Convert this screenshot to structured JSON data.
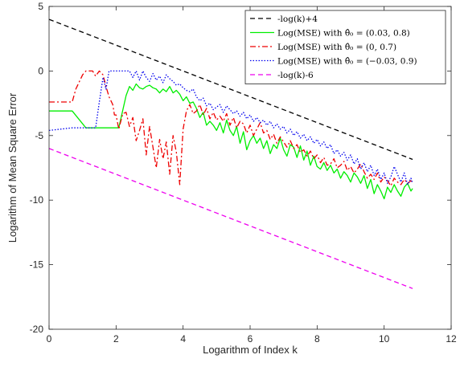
{
  "chart_data": {
    "type": "line",
    "xlabel": "Logarithm of Index k",
    "ylabel": "Logarithm of Mean Square Error",
    "xlim": [
      0,
      12
    ],
    "ylim": [
      -20,
      5
    ],
    "xticks": [
      0,
      2,
      4,
      6,
      8,
      10,
      12
    ],
    "yticks": [
      5,
      0,
      -5,
      -10,
      -15,
      -20
    ],
    "grid": false,
    "legend_position": "top-right",
    "series": [
      {
        "name": "-log(k)+4",
        "color": "#000000",
        "dash": "dashed",
        "x": [
          0,
          10.85
        ],
        "y": [
          4,
          -6.85
        ]
      },
      {
        "name": "Log(MSE) with θ̂₀ = (0.03, 0.8)",
        "color": "#00ee00",
        "dash": "solid",
        "x": [
          0,
          0.69,
          1.1,
          1.39,
          1.61,
          1.79,
          1.95,
          2.08,
          2.3,
          2.4,
          2.5,
          2.6,
          2.7,
          2.8,
          2.9,
          3.0,
          3.1,
          3.2,
          3.3,
          3.4,
          3.5,
          3.6,
          3.7,
          3.8,
          3.9,
          4.0,
          4.1,
          4.2,
          4.3,
          4.4,
          4.5,
          4.6,
          4.7,
          4.8,
          4.9,
          5.0,
          5.1,
          5.2,
          5.3,
          5.4,
          5.5,
          5.6,
          5.7,
          5.8,
          5.9,
          6.0,
          6.1,
          6.2,
          6.3,
          6.4,
          6.5,
          6.6,
          6.7,
          6.8,
          6.9,
          7.0,
          7.1,
          7.2,
          7.3,
          7.4,
          7.5,
          7.6,
          7.7,
          7.8,
          7.9,
          8.0,
          8.1,
          8.2,
          8.3,
          8.4,
          8.5,
          8.6,
          8.7,
          8.8,
          8.9,
          9.0,
          9.1,
          9.2,
          9.3,
          9.4,
          9.5,
          9.6,
          9.7,
          9.8,
          9.9,
          10.0,
          10.1,
          10.2,
          10.3,
          10.4,
          10.5,
          10.6,
          10.7,
          10.8,
          10.85
        ],
        "y": [
          -3.1,
          -3.1,
          -4.4,
          -4.4,
          -4.4,
          -4.4,
          -4.4,
          -4.4,
          -1.9,
          -1.2,
          -1.5,
          -1.0,
          -1.3,
          -1.4,
          -1.2,
          -1.1,
          -1.3,
          -1.4,
          -1.7,
          -1.4,
          -1.6,
          -1.2,
          -1.7,
          -1.5,
          -1.8,
          -2.3,
          -2.0,
          -2.5,
          -2.4,
          -2.9,
          -3.6,
          -3.2,
          -4.2,
          -3.9,
          -4.2,
          -4.6,
          -4.0,
          -4.8,
          -3.8,
          -4.6,
          -5.0,
          -4.3,
          -5.6,
          -4.7,
          -6.1,
          -5.4,
          -5.0,
          -5.6,
          -5.2,
          -6.0,
          -5.4,
          -6.4,
          -5.7,
          -6.0,
          -5.2,
          -6.1,
          -6.6,
          -5.7,
          -5.9,
          -6.7,
          -5.8,
          -6.9,
          -6.2,
          -7.3,
          -6.6,
          -7.4,
          -7.6,
          -7.1,
          -7.7,
          -7.3,
          -7.9,
          -7.6,
          -8.3,
          -7.8,
          -8.1,
          -8.6,
          -7.9,
          -8.2,
          -8.7,
          -8.1,
          -9.1,
          -8.4,
          -9.5,
          -8.8,
          -9.3,
          -9.9,
          -9.0,
          -9.4,
          -8.8,
          -9.3,
          -9.7,
          -9.0,
          -8.7,
          -9.3,
          -9.1
        ]
      },
      {
        "name": "Log(MSE) with θ̂₀ = (0, 0.7)",
        "color": "#ee0000",
        "dash": "dashdot",
        "x": [
          0,
          0.69,
          0.8,
          1.0,
          1.1,
          1.3,
          1.39,
          1.5,
          1.61,
          1.7,
          1.79,
          1.9,
          1.95,
          2.0,
          2.08,
          2.2,
          2.3,
          2.4,
          2.5,
          2.6,
          2.7,
          2.8,
          2.9,
          3.0,
          3.1,
          3.2,
          3.3,
          3.4,
          3.5,
          3.6,
          3.7,
          3.8,
          3.9,
          4.0,
          4.1,
          4.2,
          4.3,
          4.4,
          4.5,
          4.6,
          4.7,
          4.8,
          4.9,
          5.0,
          5.1,
          5.2,
          5.3,
          5.4,
          5.5,
          5.6,
          5.7,
          5.8,
          5.9,
          6.0,
          6.1,
          6.2,
          6.3,
          6.4,
          6.5,
          6.6,
          6.7,
          6.8,
          6.9,
          7.0,
          7.1,
          7.2,
          7.3,
          7.4,
          7.5,
          7.6,
          7.7,
          7.8,
          7.9,
          8.0,
          8.1,
          8.2,
          8.3,
          8.4,
          8.5,
          8.6,
          8.7,
          8.8,
          8.9,
          9.0,
          9.1,
          9.2,
          9.3,
          9.4,
          9.5,
          9.6,
          9.7,
          9.8,
          9.9,
          10.0,
          10.1,
          10.2,
          10.3,
          10.4,
          10.5,
          10.6,
          10.7,
          10.8,
          10.85
        ],
        "y": [
          -2.4,
          -2.4,
          -1.4,
          -0.3,
          0.0,
          0.0,
          -0.4,
          0.0,
          -0.3,
          -1.2,
          -2.0,
          -2.6,
          -3.4,
          -3.4,
          -4.5,
          -3.3,
          -3.2,
          -4.3,
          -3.6,
          -5.4,
          -4.6,
          -3.7,
          -6.5,
          -4.3,
          -5.9,
          -7.5,
          -5.3,
          -6.8,
          -5.5,
          -8.0,
          -5.0,
          -6.3,
          -8.8,
          -4.5,
          -3.1,
          -2.6,
          -3.3,
          -3.1,
          -2.6,
          -3.4,
          -2.9,
          -3.7,
          -3.2,
          -3.8,
          -3.5,
          -3.9,
          -3.3,
          -4.2,
          -3.6,
          -4.4,
          -3.9,
          -4.1,
          -4.8,
          -4.2,
          -5.0,
          -4.5,
          -4.0,
          -4.8,
          -4.6,
          -5.3,
          -4.9,
          -5.6,
          -5.1,
          -5.5,
          -5.9,
          -5.4,
          -6.0,
          -5.7,
          -6.3,
          -6.1,
          -6.6,
          -6.2,
          -6.8,
          -6.5,
          -7.1,
          -6.7,
          -7.3,
          -7.2,
          -6.8,
          -7.5,
          -7.3,
          -7.0,
          -7.7,
          -7.4,
          -7.9,
          -7.6,
          -7.2,
          -7.8,
          -8.3,
          -8.0,
          -8.4,
          -7.9,
          -8.6,
          -8.2,
          -8.5,
          -8.9,
          -8.3,
          -8.6,
          -8.8,
          -8.4,
          -8.7,
          -8.5,
          -8.6
        ]
      },
      {
        "name": "Log(MSE) with θ̂₀ = (−0.03, 0.9)",
        "color": "#0000ee",
        "dash": "dotted",
        "x": [
          0,
          0.69,
          1.1,
          1.39,
          1.5,
          1.61,
          1.7,
          1.79,
          1.9,
          1.95,
          2.0,
          2.08,
          2.2,
          2.3,
          2.4,
          2.5,
          2.6,
          2.7,
          2.8,
          2.9,
          3.0,
          3.1,
          3.2,
          3.3,
          3.4,
          3.5,
          3.6,
          3.7,
          3.8,
          3.9,
          4.0,
          4.1,
          4.2,
          4.3,
          4.4,
          4.5,
          4.6,
          4.7,
          4.8,
          4.9,
          5.0,
          5.1,
          5.2,
          5.3,
          5.4,
          5.5,
          5.6,
          5.7,
          5.8,
          5.9,
          6.0,
          6.1,
          6.2,
          6.3,
          6.4,
          6.5,
          6.6,
          6.7,
          6.8,
          6.9,
          7.0,
          7.1,
          7.2,
          7.3,
          7.4,
          7.5,
          7.6,
          7.7,
          7.8,
          7.9,
          8.0,
          8.1,
          8.2,
          8.3,
          8.4,
          8.5,
          8.6,
          8.7,
          8.8,
          8.9,
          9.0,
          9.1,
          9.2,
          9.3,
          9.4,
          9.5,
          9.6,
          9.7,
          9.8,
          9.9,
          10.0,
          10.1,
          10.2,
          10.3,
          10.4,
          10.5,
          10.6,
          10.7,
          10.8,
          10.85
        ],
        "y": [
          -4.6,
          -4.4,
          -4.4,
          -4.4,
          -2.4,
          -0.5,
          -1.4,
          0.0,
          0.0,
          0.0,
          0.0,
          0.0,
          0.0,
          0.0,
          0.0,
          -0.5,
          0.0,
          -0.7,
          0.0,
          -0.5,
          -0.8,
          -0.2,
          -0.7,
          -0.4,
          -0.9,
          -0.3,
          -0.6,
          -0.8,
          -1.1,
          -1.0,
          -1.3,
          -1.5,
          -1.6,
          -1.4,
          -2.0,
          -2.3,
          -2.1,
          -2.7,
          -2.5,
          -3.0,
          -2.8,
          -2.6,
          -3.2,
          -2.7,
          -3.0,
          -3.3,
          -3.1,
          -3.5,
          -3.2,
          -3.7,
          -3.4,
          -3.9,
          -3.6,
          -4.0,
          -3.8,
          -4.2,
          -3.9,
          -4.4,
          -4.1,
          -4.5,
          -4.3,
          -4.8,
          -4.5,
          -5.0,
          -4.7,
          -5.2,
          -4.9,
          -5.4,
          -5.1,
          -5.6,
          -5.3,
          -5.8,
          -5.5,
          -6.0,
          -5.7,
          -6.4,
          -6.1,
          -6.6,
          -6.3,
          -6.9,
          -6.5,
          -7.2,
          -6.8,
          -7.6,
          -7.1,
          -7.8,
          -7.3,
          -8.1,
          -7.6,
          -8.4,
          -7.9,
          -8.7,
          -8.2,
          -7.4,
          -8.0,
          -8.6,
          -7.9,
          -8.8,
          -8.3,
          -8.7
        ]
      },
      {
        "name": "-log(k)-6",
        "color": "#ee00ee",
        "dash": "dashed",
        "x": [
          0,
          10.85
        ],
        "y": [
          -6,
          -16.85
        ]
      }
    ]
  }
}
